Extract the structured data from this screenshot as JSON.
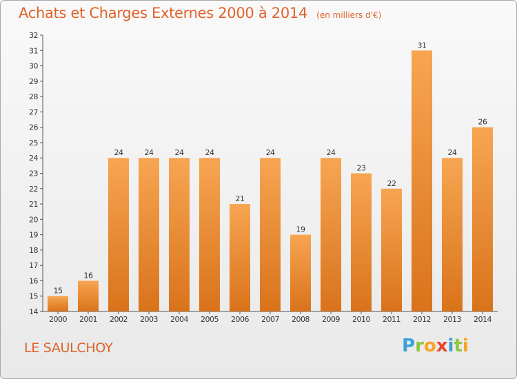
{
  "title": "Achats et Charges Externes 2000 à 2014",
  "unit_note": "(en milliers d'€)",
  "commune": "LE SAULCHOY",
  "logo": {
    "letters": [
      "P",
      "r",
      "o",
      "x",
      "i",
      "t",
      "i"
    ],
    "colors": [
      "#3aa0d8",
      "#8cc63e",
      "#f5a623",
      "#e8452c",
      "#3aa0d8",
      "#8cc63e",
      "#f5a623"
    ]
  },
  "colors": {
    "bar_light": "#f7a552",
    "bar_dark": "#d9731b",
    "text": "#e0622a"
  },
  "chart_data": {
    "type": "bar",
    "categories": [
      "2000",
      "2001",
      "2002",
      "2003",
      "2004",
      "2005",
      "2006",
      "2007",
      "2008",
      "2009",
      "2010",
      "2011",
      "2012",
      "2013",
      "2014"
    ],
    "values": [
      15,
      16,
      24,
      24,
      24,
      24,
      21,
      24,
      19,
      24,
      23,
      22,
      31,
      24,
      26
    ],
    "title": "Achats et Charges Externes 2000 à 2014",
    "ylim": [
      14,
      32
    ],
    "yticks": [
      14,
      15,
      16,
      17,
      18,
      19,
      20,
      21,
      22,
      23,
      24,
      25,
      26,
      27,
      28,
      29,
      30,
      31,
      32
    ],
    "grid": false,
    "data_labels": true
  }
}
